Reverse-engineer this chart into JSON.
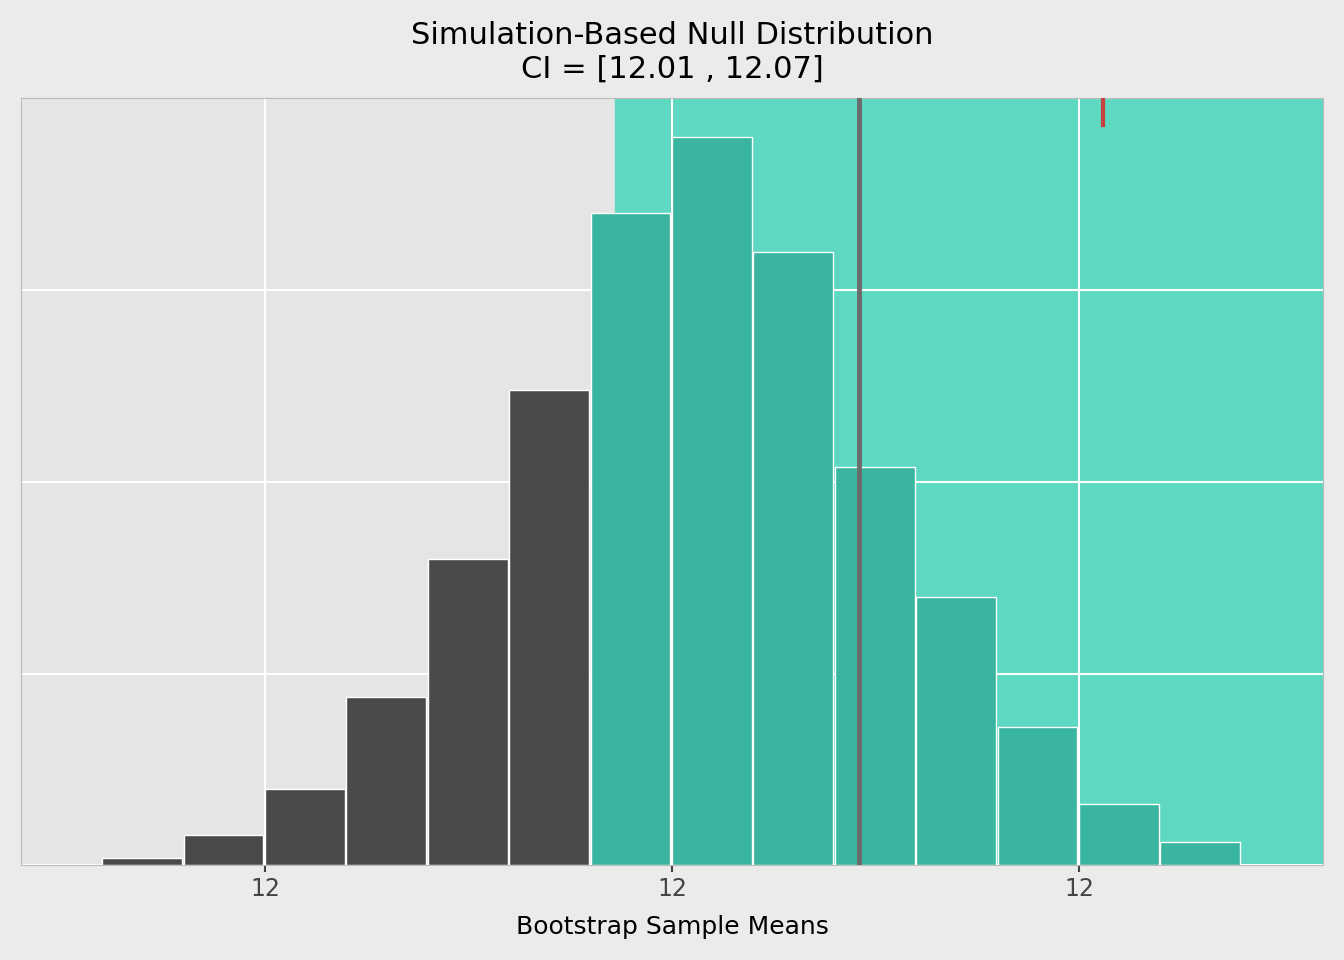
{
  "title_line1": "Simulation-Based Null Distribution",
  "title_line2": "CI = [12.01 , 12.07]",
  "xlabel": "Bootstrap Sample Means",
  "ylabel": "",
  "ci_lower": 12.013,
  "ci_upper": 12.073,
  "observed": 12.043,
  "bin_edges": [
    11.95,
    11.96,
    11.97,
    11.98,
    11.99,
    12.0,
    12.01,
    12.02,
    12.03,
    12.04,
    12.05,
    12.06,
    12.07,
    12.08,
    12.09
  ],
  "bin_counts": [
    1,
    4,
    10,
    22,
    40,
    62,
    85,
    95,
    80,
    52,
    35,
    18,
    8,
    3
  ],
  "color_dark": "#4a4a4a",
  "color_teal": "#3ab5a0",
  "color_ci_fill": "#5ed8c0",
  "color_vline": "#6b6b6b",
  "color_vline_red": "#c94040",
  "bg_panel": "#e5e5e5",
  "bg_outer": "#ebebeb",
  "grid_color": "#ffffff",
  "xlim": [
    11.94,
    12.1
  ],
  "ylim": [
    0,
    100
  ],
  "xticks": [
    11.97,
    12.02,
    12.07
  ],
  "xtick_labels": [
    "12",
    "12",
    "12"
  ],
  "title_fontsize": 22,
  "label_fontsize": 18,
  "tick_fontsize": 17
}
